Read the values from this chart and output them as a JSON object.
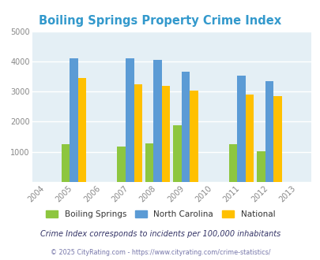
{
  "title": "Boiling Springs Property Crime Index",
  "title_color": "#3399cc",
  "years": [
    2005,
    2007,
    2008,
    2009,
    2011,
    2012
  ],
  "x_ticks": [
    2004,
    2005,
    2006,
    2007,
    2008,
    2009,
    2010,
    2011,
    2012,
    2013
  ],
  "boiling_springs": [
    1250,
    1175,
    1290,
    1880,
    1250,
    1020
  ],
  "north_carolina": [
    4100,
    4100,
    4050,
    3650,
    3520,
    3340
  ],
  "national": [
    3440,
    3250,
    3200,
    3030,
    2900,
    2860
  ],
  "colors": {
    "boiling_springs": "#8dc63f",
    "north_carolina": "#5b9bd5",
    "national": "#ffc000"
  },
  "ylim": [
    0,
    5000
  ],
  "yticks": [
    0,
    1000,
    2000,
    3000,
    4000,
    5000
  ],
  "bar_width": 0.3,
  "bg_color": "#e4eff5",
  "grid_color": "#ffffff",
  "legend_labels": [
    "Boiling Springs",
    "North Carolina",
    "National"
  ],
  "note": "Crime Index corresponds to incidents per 100,000 inhabitants",
  "note_color": "#333366",
  "copyright": "© 2025 CityRating.com - https://www.cityrating.com/crime-statistics/",
  "copyright_color": "#7777aa"
}
